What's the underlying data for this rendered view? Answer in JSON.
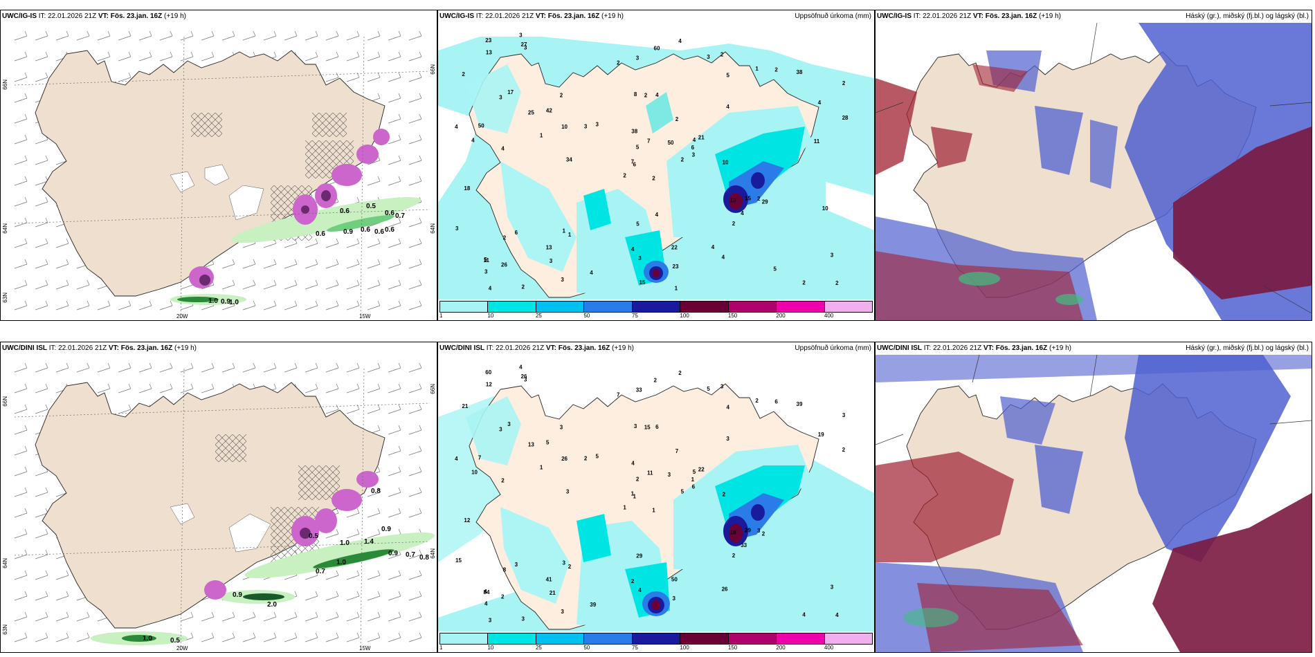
{
  "colors": {
    "land": "#efdfcf",
    "sea": "#ffffff",
    "precip_light": "#a8f4f4",
    "precip_cyan": "#00e4e4",
    "precip_blue": "#2a7ce8",
    "precip_dark": "#1a1a9c",
    "precip_maroon": "#6a0036",
    "purple": "#cc66cc",
    "green_light": "#c8f0c0",
    "green_dark": "#2a8a3a",
    "cloud_blue": "#5060d0",
    "cloud_red": "#a02030"
  },
  "panels": [
    {
      "id": "tl",
      "kind": "wind",
      "model": "UWC/IG-IS",
      "it_label": "IT:",
      "it": "22.01.2026 21Z",
      "vt_label": "VT:",
      "vt": "Fös. 23.jan. 16Z",
      "lead": "(+19 h)",
      "right_title": "",
      "lat_ticks": [
        "66N",
        "64N",
        "63N"
      ],
      "lon_ticks": [
        "20W",
        "15W"
      ],
      "right_ticks": [
        "66N",
        "64N"
      ],
      "values": [
        "0.6",
        "0.5",
        "0.6",
        "0.7",
        "0.9",
        "0.6",
        "0.6",
        "0.6",
        "0.6",
        "1.0",
        "0.9",
        "1.0"
      ]
    },
    {
      "id": "tm",
      "kind": "precip",
      "model": "UWC/IG-IS",
      "it_label": "IT:",
      "it": "22.01.2026 21Z",
      "vt_label": "VT:",
      "vt": "Fös. 23.jan. 16Z",
      "lead": "(+19 h)",
      "right_title": "Uppsöfnuð úrkoma (mm)",
      "colorbar": [
        "1",
        "10",
        "25",
        "50",
        "75",
        "100",
        "150",
        "200",
        "400"
      ],
      "numbers": [
        "2",
        "3",
        "6",
        "5",
        "4",
        "1",
        "2",
        "4",
        "5",
        "2",
        "3",
        "2",
        "4",
        "2",
        "2",
        "4",
        "2",
        "8",
        "2",
        "6",
        "3",
        "3",
        "3",
        "2",
        "21",
        "29",
        "17",
        "3",
        "4",
        "13",
        "28",
        "7",
        "4",
        "5",
        "2",
        "1",
        "1",
        "2",
        "3",
        "2",
        "4",
        "3",
        "1",
        "2",
        "3",
        "4",
        "6",
        "4",
        "3",
        "3",
        "2",
        "4",
        "2",
        "4",
        "4",
        "13",
        "27",
        "23",
        "22",
        "38",
        "60",
        "34",
        "50",
        "42",
        "2",
        "3",
        "3",
        "2",
        "7",
        "3",
        "5",
        "4",
        "15",
        "10",
        "11",
        "13",
        "25",
        "18",
        "38",
        "23",
        "50",
        "26",
        "10",
        "10",
        "15",
        "11",
        "4",
        "5",
        "1",
        "4"
      ]
    },
    {
      "id": "tr",
      "kind": "cloud",
      "model": "UWC/IG-IS",
      "it_label": "IT:",
      "it": "22.01.2026 21Z",
      "vt_label": "VT:",
      "vt": "Fös. 23.jan. 16Z",
      "lead": "(+19 h)",
      "right_title": "Háský (gr.), miðský (fj.bl.) og lágský (bl.)"
    },
    {
      "id": "bl",
      "kind": "wind",
      "model": "UWC/DINI ISL",
      "it_label": "IT:",
      "it": "22.01.2026 21Z",
      "vt_label": "VT:",
      "vt": "Fös. 23.jan. 16Z",
      "lead": "(+19 h)",
      "right_title": "",
      "lat_ticks": [
        "66N",
        "64N",
        "63N"
      ],
      "lon_ticks": [
        "20W",
        "15W"
      ],
      "right_ticks": [
        "66N",
        "64N"
      ],
      "values": [
        "0.8",
        "0.5",
        "0.9",
        "1.0",
        "1.4",
        "0.9",
        "0.7",
        "0.8",
        "0.7",
        "1.0",
        "0.9",
        "2.0",
        "1.0",
        "0.5"
      ]
    },
    {
      "id": "bm",
      "kind": "precip",
      "model": "UWC/DINI ISL",
      "it_label": "IT:",
      "it": "22.01.2026 21Z",
      "vt_label": "VT:",
      "vt": "Fös. 23.jan. 16Z",
      "lead": "(+19 h)",
      "right_title": "Uppsöfnuð úrkoma (mm)",
      "colorbar": [
        "1",
        "10",
        "25",
        "50",
        "75",
        "100",
        "150",
        "200",
        "400"
      ],
      "numbers": [
        "1",
        "3",
        "1",
        "4",
        "5",
        "2",
        "3",
        "6",
        "4",
        "5",
        "3",
        "4",
        "2",
        "3",
        "1",
        "3",
        "3",
        "3",
        "7",
        "3",
        "5",
        "4",
        "21",
        "15",
        "22",
        "2",
        "3",
        "33",
        "10",
        "18",
        "2",
        "1",
        "2",
        "2",
        "3",
        "2",
        "3",
        "4",
        "3",
        "3",
        "2",
        "2",
        "1",
        "2",
        "3",
        "4",
        "1",
        "3",
        "4",
        "6",
        "8",
        "19",
        "21",
        "33",
        "26",
        "41",
        "26",
        "60",
        "50",
        "39",
        "2",
        "3",
        "7",
        "5",
        "6",
        "4",
        "5",
        "7",
        "11",
        "15",
        "29",
        "39",
        "29",
        "26",
        "84",
        "12",
        "13",
        "12",
        "4",
        "3",
        "3",
        "2",
        "2"
      ]
    }
  ]
}
